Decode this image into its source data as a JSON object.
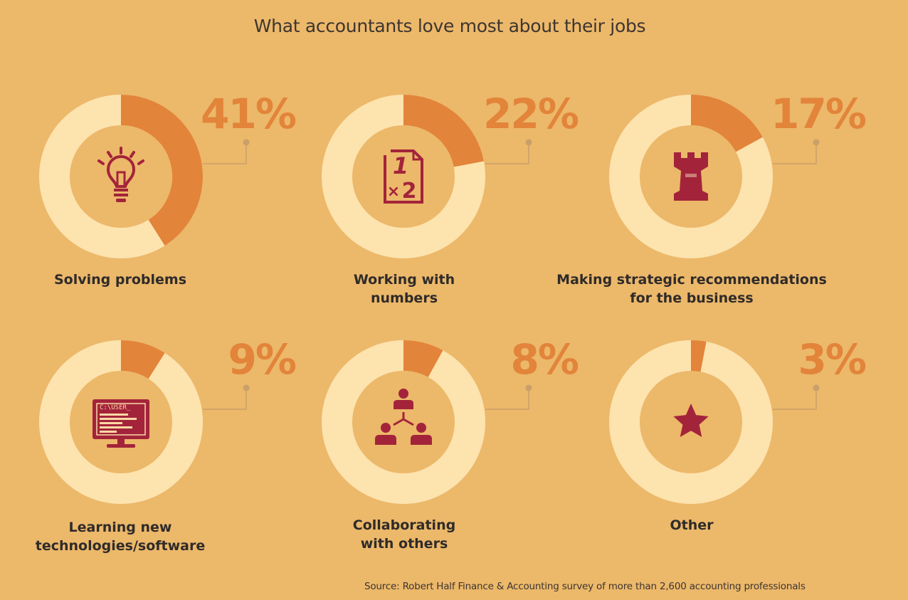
{
  "chart_data": {
    "type": "pie",
    "variant": "donut",
    "title": "What accountants love most about their jobs",
    "categories": [
      "Solving problems",
      "Working with numbers",
      "Making strategic recommendations for the business",
      "Learning new technologies/software",
      "Collaborating with others",
      "Other"
    ],
    "values": [
      41,
      22,
      17,
      9,
      8,
      3
    ],
    "value_labels": [
      "41%",
      "22%",
      "17%",
      "9%",
      "8%",
      "3%"
    ],
    "icons": [
      "lightbulb-icon",
      "math-document-icon",
      "chess-rook-icon",
      "computer-monitor-icon",
      "team-hierarchy-icon",
      "star-icon"
    ],
    "colors": {
      "background": "#ecb86a",
      "filled": "#e2843a",
      "track": "#fde3ae",
      "icon": "#a3243a",
      "value_text": "#e2843a"
    }
  },
  "labels": {
    "item_0_line_1": "Solving problems",
    "item_1_line_1": "Working with",
    "item_1_line_2": "numbers",
    "item_2_line_1": "Making strategic recommendations",
    "item_2_line_2": "for the business",
    "item_3_line_1": "Learning new",
    "item_3_line_2": "technologies/software",
    "item_4_line_1": "Collaborating",
    "item_4_line_2": "with others",
    "item_5_line_1": "Other"
  },
  "monitor_text": "C:\\USER_",
  "source": "Source: Robert Half Finance & Accounting survey of more than 2,600 accounting professionals"
}
